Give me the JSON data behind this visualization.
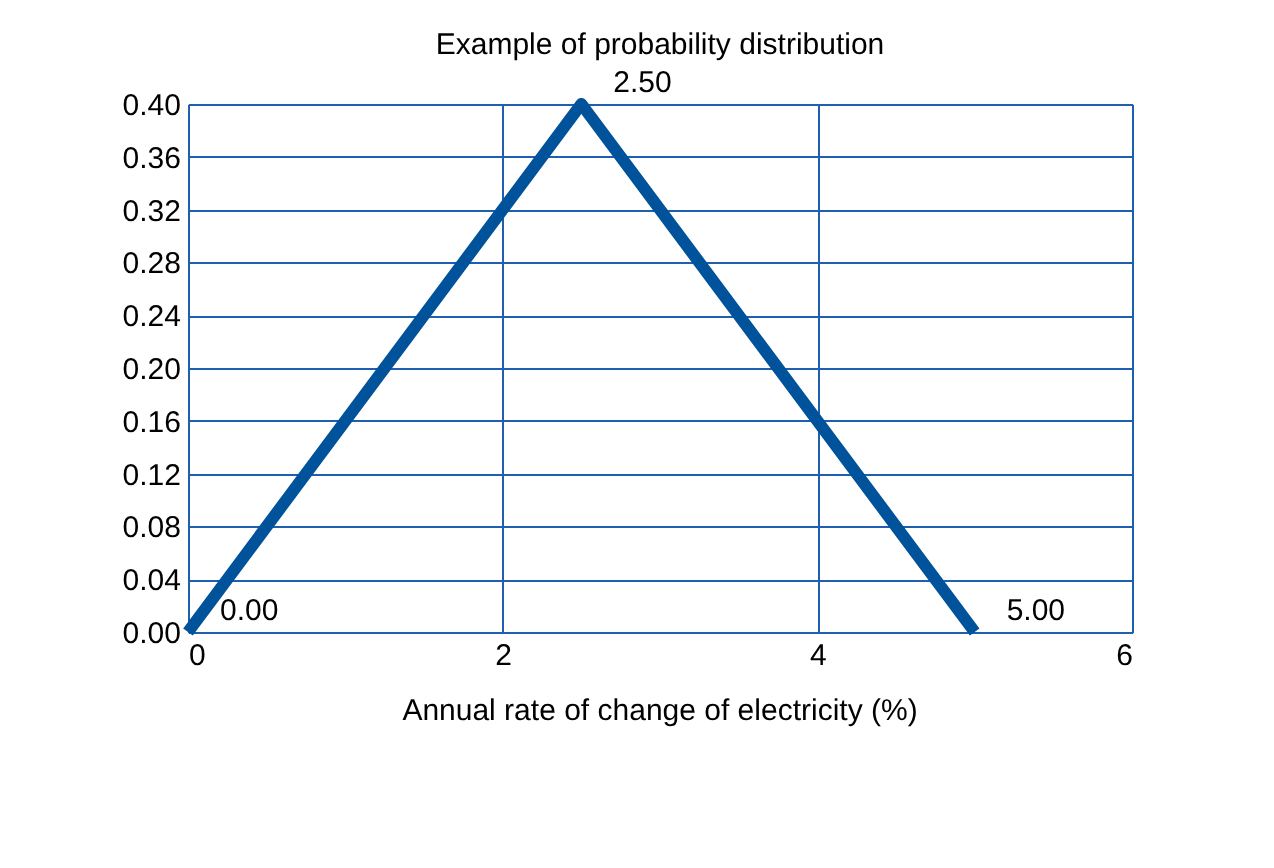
{
  "chart_data": {
    "type": "line",
    "title": "Example of probability distribution",
    "xlabel": "Annual rate of change of electricity (%)",
    "x": [
      0,
      2.5,
      5
    ],
    "series": [
      {
        "color": "#00529b",
        "values": [
          0,
          0.4,
          0
        ]
      }
    ],
    "annotations": [
      {
        "text": "0.00",
        "x": 0,
        "y": 0
      },
      {
        "text": "2.50",
        "x": 2.5,
        "y": 0.4
      },
      {
        "text": "5.00",
        "x": 5,
        "y": 0
      }
    ],
    "xlim": [
      0,
      6
    ],
    "xticks": [
      0,
      2,
      4,
      6
    ],
    "ylim": [
      0,
      0.4
    ],
    "yticks": [
      {
        "value": 0,
        "label": "0.00"
      },
      {
        "value": 0.04,
        "label": "0.04"
      },
      {
        "value": 0.08,
        "label": "0.08"
      },
      {
        "value": 0.12,
        "label": "0.12"
      },
      {
        "value": 0.16,
        "label": "0.16"
      },
      {
        "value": 0.2,
        "label": "0.20"
      },
      {
        "value": 0.24,
        "label": "0.24"
      },
      {
        "value": 0.28,
        "label": "0.28"
      },
      {
        "value": 0.32,
        "label": "0.32"
      },
      {
        "value": 0.36,
        "label": "0.36"
      },
      {
        "value": 0.4,
        "label": "0.40"
      }
    ],
    "grid": true,
    "marker": "none",
    "line_style": "solid"
  }
}
